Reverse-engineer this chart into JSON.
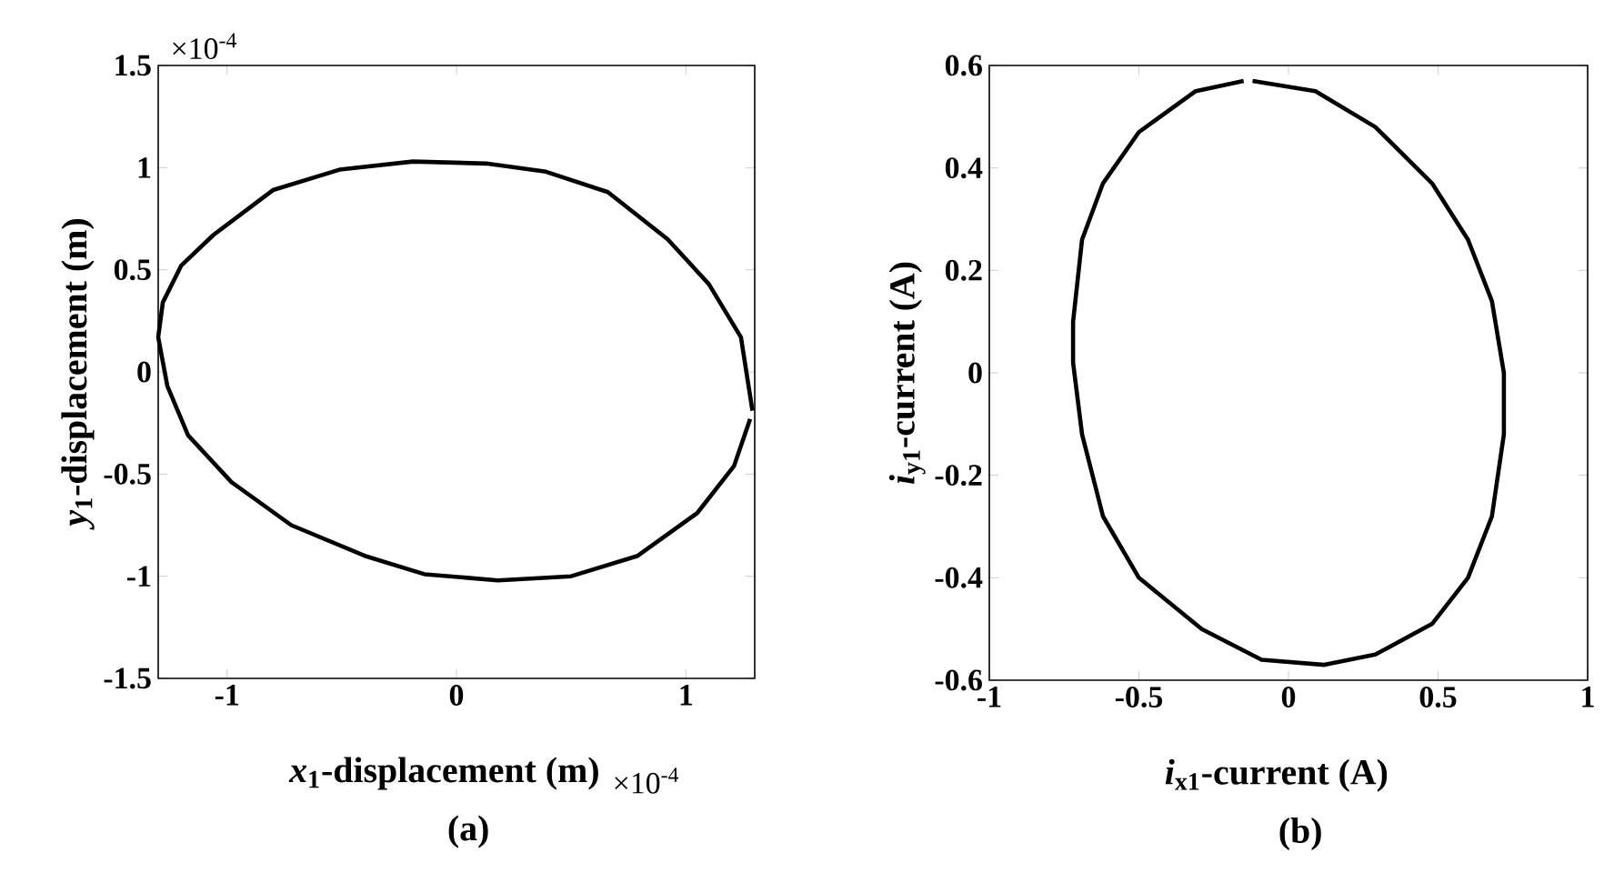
{
  "chart_data": [
    {
      "type": "line",
      "xlabel": "*x*$_{1}$-displacement (m)",
      "ylabel": "*y*$_{1}$-displacement (m)",
      "annotations": [
        "×10$^{-4}$",
        "×10$^{-4}$",
        "(a)"
      ],
      "xlim": [
        -1.3,
        1.3
      ],
      "ylim": [
        -1.5,
        1.5
      ],
      "xticks": [
        -1,
        0,
        1
      ],
      "yticks": [
        -1.5,
        -1,
        -0.5,
        0,
        0.5,
        1,
        1.5
      ],
      "grid": false,
      "marker": "none",
      "line_style": "solid",
      "series": [
        {
          "color": "#000000",
          "x": [
            1.29,
            1.24,
            1.1,
            0.92,
            0.66,
            0.39,
            0.13,
            -0.19,
            -0.51,
            -0.8,
            -1.06,
            -1.2,
            -1.28,
            -1.3,
            -1.26,
            -1.17,
            -0.98,
            -0.72,
            -0.4,
            -0.14,
            0.18,
            0.5,
            0.79,
            1.05,
            1.21,
            1.28
          ],
          "values": [
            -0.19,
            0.17,
            0.43,
            0.65,
            0.88,
            0.98,
            1.02,
            1.03,
            0.99,
            0.89,
            0.67,
            0.52,
            0.34,
            0.17,
            -0.07,
            -0.31,
            -0.54,
            -0.75,
            -0.9,
            -0.99,
            -1.02,
            -1.0,
            -0.9,
            -0.69,
            -0.46,
            -0.23
          ]
        }
      ]
    },
    {
      "type": "line",
      "xlabel": "*i*$_{x1}$-current (A)",
      "ylabel": "*i*$_{y1}$-current (A)",
      "annotations": [
        "(b)"
      ],
      "xlim": [
        -1,
        1
      ],
      "ylim": [
        -0.6,
        0.6
      ],
      "xticks": [
        -1,
        -0.5,
        0,
        0.5,
        1
      ],
      "yticks": [
        -0.6,
        -0.4,
        -0.2,
        0,
        0.2,
        0.4,
        0.6
      ],
      "grid": false,
      "marker": "none",
      "line_style": "solid",
      "series": [
        {
          "color": "#000000",
          "x": [
            -0.12,
            0.09,
            0.29,
            0.48,
            0.6,
            0.68,
            0.72,
            0.72,
            0.68,
            0.6,
            0.48,
            0.29,
            0.12,
            -0.09,
            -0.29,
            -0.5,
            -0.62,
            -0.69,
            -0.72,
            -0.72,
            -0.69,
            -0.62,
            -0.5,
            -0.31,
            -0.15
          ],
          "values": [
            0.57,
            0.55,
            0.48,
            0.37,
            0.26,
            0.14,
            0.0,
            -0.12,
            -0.28,
            -0.4,
            -0.49,
            -0.55,
            -0.57,
            -0.56,
            -0.5,
            -0.4,
            -0.28,
            -0.12,
            0.02,
            0.1,
            0.26,
            0.37,
            0.47,
            0.55,
            0.57
          ]
        }
      ]
    }
  ]
}
